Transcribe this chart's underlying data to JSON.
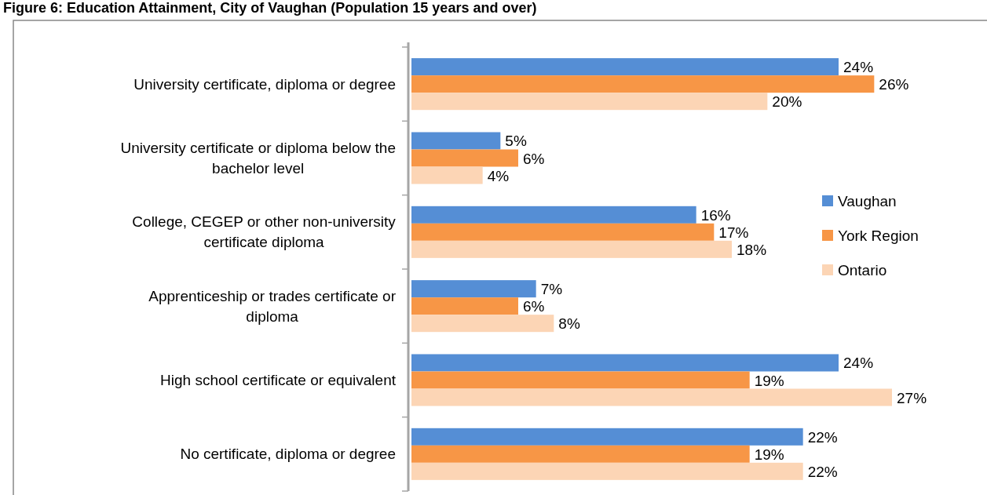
{
  "chart_data": {
    "type": "bar",
    "orientation": "horizontal",
    "title": "Figure 6: Education Attainment, City of Vaughan (Population 15 years and over)",
    "categories": [
      "University certificate, diploma or degree",
      "University certificate or diploma below the bachelor level",
      "College, CEGEP or other non-university certificate diploma",
      "Apprenticeship or trades certificate or diploma",
      "High school certificate or equivalent",
      "No certificate, diploma or degree"
    ],
    "series": [
      {
        "name": "Vaughan",
        "color": "#558ed5",
        "values": [
          24,
          5,
          16,
          7,
          24,
          22
        ],
        "value_labels": [
          "24%",
          "5%",
          "16%",
          "7%",
          "24%",
          "22%"
        ]
      },
      {
        "name": "York Region",
        "color": "#f79646",
        "values": [
          26,
          6,
          17,
          6,
          19,
          19
        ],
        "value_labels": [
          "26%",
          "6%",
          "17%",
          "6%",
          "19%",
          "19%"
        ]
      },
      {
        "name": "Ontario",
        "color": "#fcd5b5",
        "values": [
          20,
          4,
          18,
          8,
          27,
          22
        ],
        "value_labels": [
          "20%",
          "4%",
          "18%",
          "8%",
          "27%",
          "22%"
        ]
      }
    ],
    "legend": "right"
  }
}
